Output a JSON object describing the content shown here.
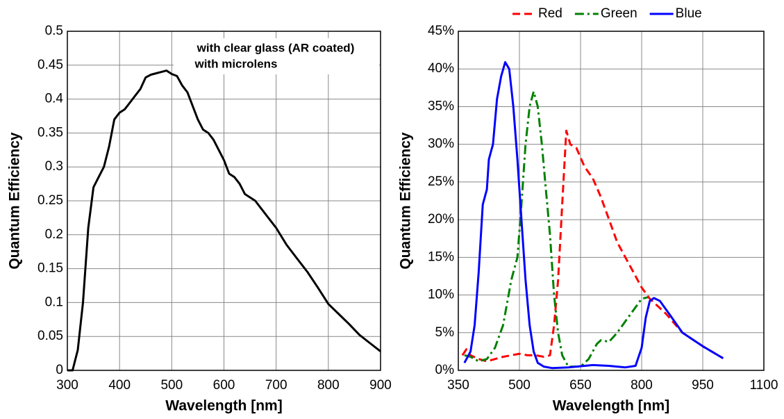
{
  "chart_data": [
    {
      "type": "line",
      "xlabel": "Wavelength [nm]",
      "ylabel": "Quantum Efficiency",
      "annotation": [
        "with clear glass (AR coated)",
        "with microlens"
      ],
      "color": "#000000",
      "grid": true,
      "x": [
        300,
        310,
        320,
        330,
        340,
        350,
        360,
        370,
        380,
        390,
        400,
        410,
        420,
        430,
        440,
        450,
        460,
        470,
        480,
        490,
        500,
        510,
        520,
        530,
        540,
        550,
        560,
        570,
        580,
        590,
        600,
        610,
        620,
        630,
        640,
        650,
        660,
        670,
        680,
        690,
        700,
        720,
        740,
        760,
        780,
        800,
        820,
        840,
        860,
        880,
        900
      ],
      "values": [
        0,
        0,
        0.03,
        0.1,
        0.21,
        0.27,
        0.285,
        0.3,
        0.33,
        0.37,
        0.38,
        0.385,
        0.395,
        0.405,
        0.415,
        0.432,
        0.436,
        0.438,
        0.44,
        0.442,
        0.437,
        0.434,
        0.42,
        0.41,
        0.39,
        0.37,
        0.355,
        0.35,
        0.34,
        0.325,
        0.31,
        0.29,
        0.285,
        0.275,
        0.26,
        0.255,
        0.25,
        0.24,
        0.23,
        0.22,
        0.21,
        0.185,
        0.165,
        0.145,
        0.122,
        0.098,
        0.083,
        0.068,
        0.052,
        0.04,
        0.028
      ],
      "xlim": [
        300,
        900
      ],
      "xticks": [
        300,
        400,
        500,
        600,
        700,
        800,
        900
      ],
      "ylim": [
        0,
        0.5
      ],
      "yticks": [
        0,
        0.05,
        0.1,
        0.15,
        0.2,
        0.25,
        0.3,
        0.35,
        0.4,
        0.45,
        0.5
      ]
    },
    {
      "type": "line",
      "xlabel": "Wavelength [nm]",
      "ylabel": "Quantum Efficiency",
      "grid": true,
      "legend": "top",
      "series": [
        {
          "name": "Red",
          "color": "#ff0000",
          "dash": "dashed",
          "x": [
            360,
            370,
            380,
            400,
            420,
            440,
            460,
            480,
            500,
            520,
            540,
            560,
            575,
            585,
            595,
            605,
            615,
            625,
            640,
            660,
            680,
            700,
            720,
            740,
            760,
            780,
            800,
            820,
            840,
            860,
            900,
            950,
            1000
          ],
          "values": [
            2,
            2.8,
            2,
            1.5,
            1.2,
            1.5,
            1.8,
            2,
            2.2,
            2,
            2,
            1.8,
            2,
            6,
            12,
            22,
            31.8,
            30,
            29.5,
            27,
            25.5,
            23,
            20,
            17,
            15,
            13,
            11,
            9.5,
            8.5,
            7.5,
            5,
            3.2,
            1.6
          ]
        },
        {
          "name": "Green",
          "color": "#008000",
          "dash": "dashdot",
          "x": [
            365,
            380,
            400,
            420,
            440,
            460,
            480,
            495,
            505,
            515,
            525,
            535,
            545,
            555,
            565,
            575,
            585,
            595,
            605,
            620,
            650,
            670,
            690,
            700,
            720,
            740,
            760,
            780,
            800,
            815
          ],
          "values": [
            2,
            1.8,
            1.2,
            1.5,
            3,
            6,
            12,
            15,
            22,
            30,
            35,
            37,
            35,
            30,
            24,
            18,
            10,
            5,
            2,
            0.5,
            0.5,
            1.5,
            3.5,
            4,
            3.8,
            5,
            6.5,
            8,
            9.5,
            9.7
          ]
        },
        {
          "name": "Blue",
          "color": "#0000ff",
          "dash": "solid",
          "x": [
            365,
            380,
            390,
            400,
            410,
            420,
            425,
            435,
            445,
            455,
            465,
            475,
            485,
            495,
            505,
            515,
            525,
            535,
            545,
            560,
            580,
            620,
            680,
            720,
            760,
            785,
            800,
            810,
            820,
            830,
            845,
            870,
            900,
            950,
            1000
          ],
          "values": [
            1,
            2.5,
            6,
            13,
            22,
            24,
            28,
            30,
            36,
            39,
            40.9,
            40,
            35,
            28,
            20,
            12,
            6,
            2.5,
            1,
            0.5,
            0.3,
            0.4,
            0.7,
            0.6,
            0.4,
            0.6,
            3,
            7,
            9.2,
            9.6,
            9.2,
            7.3,
            5,
            3.2,
            1.6
          ]
        }
      ],
      "xlim": [
        350,
        1100
      ],
      "xticks": [
        350,
        500,
        650,
        800,
        950,
        1100
      ],
      "ylim": [
        0,
        45
      ],
      "yticks": [
        {
          "value": 0,
          "label": "0%"
        },
        {
          "value": 5,
          "label": "5%"
        },
        {
          "value": 10,
          "label": "10%"
        },
        {
          "value": 15,
          "label": "15%"
        },
        {
          "value": 20,
          "label": "20%"
        },
        {
          "value": 25,
          "label": "25%"
        },
        {
          "value": 30,
          "label": "30%"
        },
        {
          "value": 35,
          "label": "35%"
        },
        {
          "value": 40,
          "label": "40%"
        },
        {
          "value": 45,
          "label": "45%"
        }
      ]
    }
  ]
}
